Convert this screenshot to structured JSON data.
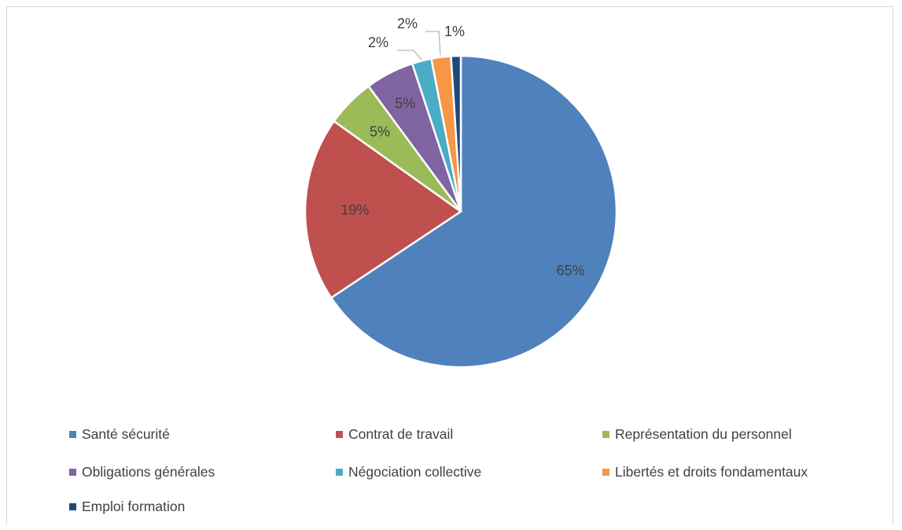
{
  "chart_data": {
    "type": "pie",
    "title": "",
    "start_angle_deg": 0,
    "direction": "clockwise",
    "legend_position": "bottom",
    "slices": [
      {
        "name": "Santé sécurité",
        "value": 65,
        "label": "65%",
        "color": "#4f81bd"
      },
      {
        "name": "Contrat de travail",
        "value": 19,
        "label": "19%",
        "color": "#c0504d"
      },
      {
        "name": "Représentation du personnel",
        "value": 5,
        "label": "5%",
        "color": "#9bbb59"
      },
      {
        "name": "Obligations générales",
        "value": 5,
        "label": "5%",
        "color": "#8064a2"
      },
      {
        "name": "Négociation collective",
        "value": 2,
        "label": "2%",
        "color": "#4bacc6"
      },
      {
        "name": "Libertés et droits fondamentaux",
        "value": 2,
        "label": "2%",
        "color": "#f79646"
      },
      {
        "name": "Emploi formation",
        "value": 1,
        "label": "1%",
        "color": "#1f497d"
      }
    ]
  }
}
